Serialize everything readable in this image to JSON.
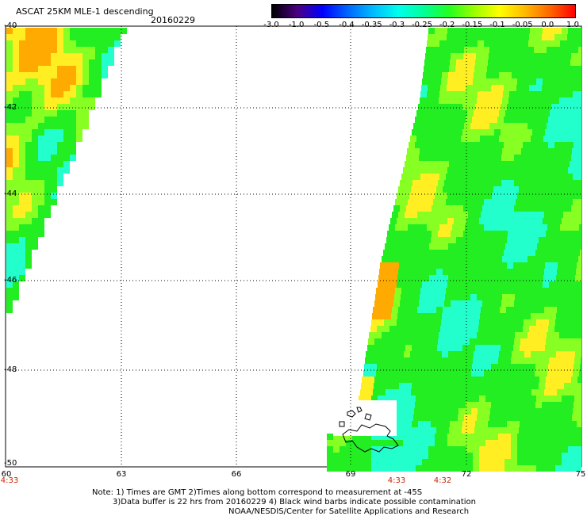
{
  "header": {
    "title": "ASCAT 25KM MLE-1 descending",
    "date": "20160229"
  },
  "colorbar": {
    "labels": [
      "-3.0",
      "-1.0",
      "-0.5",
      "-0.4",
      "-0.35",
      "-0.3",
      "-0.25",
      "-0.2",
      "-0.15",
      "-0.1",
      "-0.05",
      "0.0",
      "1.0"
    ],
    "colors": [
      "#000000",
      "#4b0082",
      "#0000ff",
      "#0066ff",
      "#00bbff",
      "#00ffee",
      "#00ff99",
      "#22ff22",
      "#99ff00",
      "#ffff00",
      "#ffbb00",
      "#ff6600",
      "#ff0000"
    ]
  },
  "map": {
    "lat_labels": [
      "-40",
      "-42",
      "-44",
      "-46",
      "-48",
      "-50"
    ],
    "lon_labels": [
      "60",
      "63",
      "66",
      "69",
      "72",
      "75"
    ],
    "time_labels": [
      "4:33",
      "4:33",
      "4:32"
    ],
    "grid": "dotted",
    "swath_colors": {
      "green": "#22ee22",
      "lime": "#88ff22",
      "yellow": "#ffee22",
      "orange": "#ffaa00",
      "cyan": "#22ffcc"
    }
  },
  "notes": {
    "line1": "Note: 1) Times are GMT 2)Times along bottom correspond to measurement at -45S",
    "line2": "3)Data buffer is 22 hrs from 20160229 4) Black wind barbs indicate possible contamination",
    "line3": "NOAA/NESDIS/Center for Satellite Applications and Research"
  }
}
